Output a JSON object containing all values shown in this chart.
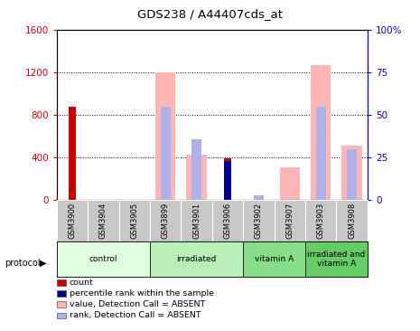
{
  "title": "GDS238 / A44407cds_at",
  "samples": [
    "GSM3900",
    "GSM3904",
    "GSM3905",
    "GSM3899",
    "GSM3901",
    "GSM3906",
    "GSM3902",
    "GSM3907",
    "GSM3903",
    "GSM3908"
  ],
  "left_ylim": [
    0,
    1600
  ],
  "right_ylim": [
    0,
    100
  ],
  "left_yticks": [
    0,
    400,
    800,
    1200,
    1600
  ],
  "right_yticks": [
    0,
    25,
    50,
    75,
    100
  ],
  "right_yticklabels": [
    "0",
    "25",
    "50",
    "75",
    "100%"
  ],
  "left_yticklabels": [
    "0",
    "400",
    "800",
    "1200",
    "1600"
  ],
  "count_values": [
    880,
    0,
    0,
    0,
    0,
    390,
    0,
    0,
    0,
    0
  ],
  "rank_values_pct": [
    0,
    0,
    0,
    0,
    0,
    23,
    0,
    0,
    0,
    0
  ],
  "absent_value_values": [
    0,
    0,
    0,
    1200,
    430,
    0,
    0,
    310,
    1270,
    510
  ],
  "absent_rank_values_pct": [
    0,
    0,
    0,
    55,
    36,
    0,
    3,
    0,
    55,
    30
  ],
  "count_color": "#cc0000",
  "rank_color": "#00008b",
  "absent_value_color": "#ffb6b6",
  "absent_rank_color": "#b0b0e8",
  "left_axis_color": "#cc0000",
  "right_axis_color": "#0000cc",
  "sample_label_bg": "#c8c8c8",
  "group_info": [
    {
      "label": "control",
      "start": 0,
      "end": 2,
      "color": "#e0ffe0"
    },
    {
      "label": "irradiated",
      "start": 3,
      "end": 5,
      "color": "#b8f0b8"
    },
    {
      "label": "vitamin A",
      "start": 6,
      "end": 7,
      "color": "#88dd88"
    },
    {
      "label": "irradiated and\nvitamin A",
      "start": 8,
      "end": 9,
      "color": "#66cc66"
    }
  ],
  "legend_items": [
    {
      "label": "count",
      "color": "#cc0000"
    },
    {
      "label": "percentile rank within the sample",
      "color": "#00008b"
    },
    {
      "label": "value, Detection Call = ABSENT",
      "color": "#ffb6b6"
    },
    {
      "label": "rank, Detection Call = ABSENT",
      "color": "#b0b0e8"
    }
  ]
}
